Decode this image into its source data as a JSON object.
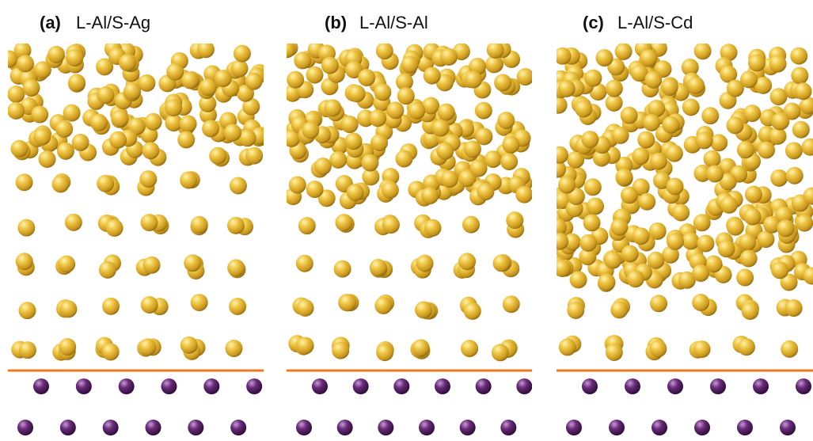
{
  "panels": [
    {
      "label": "(a)",
      "title": "L-Al/S-Ag"
    },
    {
      "label": "(b)",
      "title": "L-Al/S-Al"
    },
    {
      "label": "(c)",
      "title": "L-Al/S-Cd"
    }
  ]
}
